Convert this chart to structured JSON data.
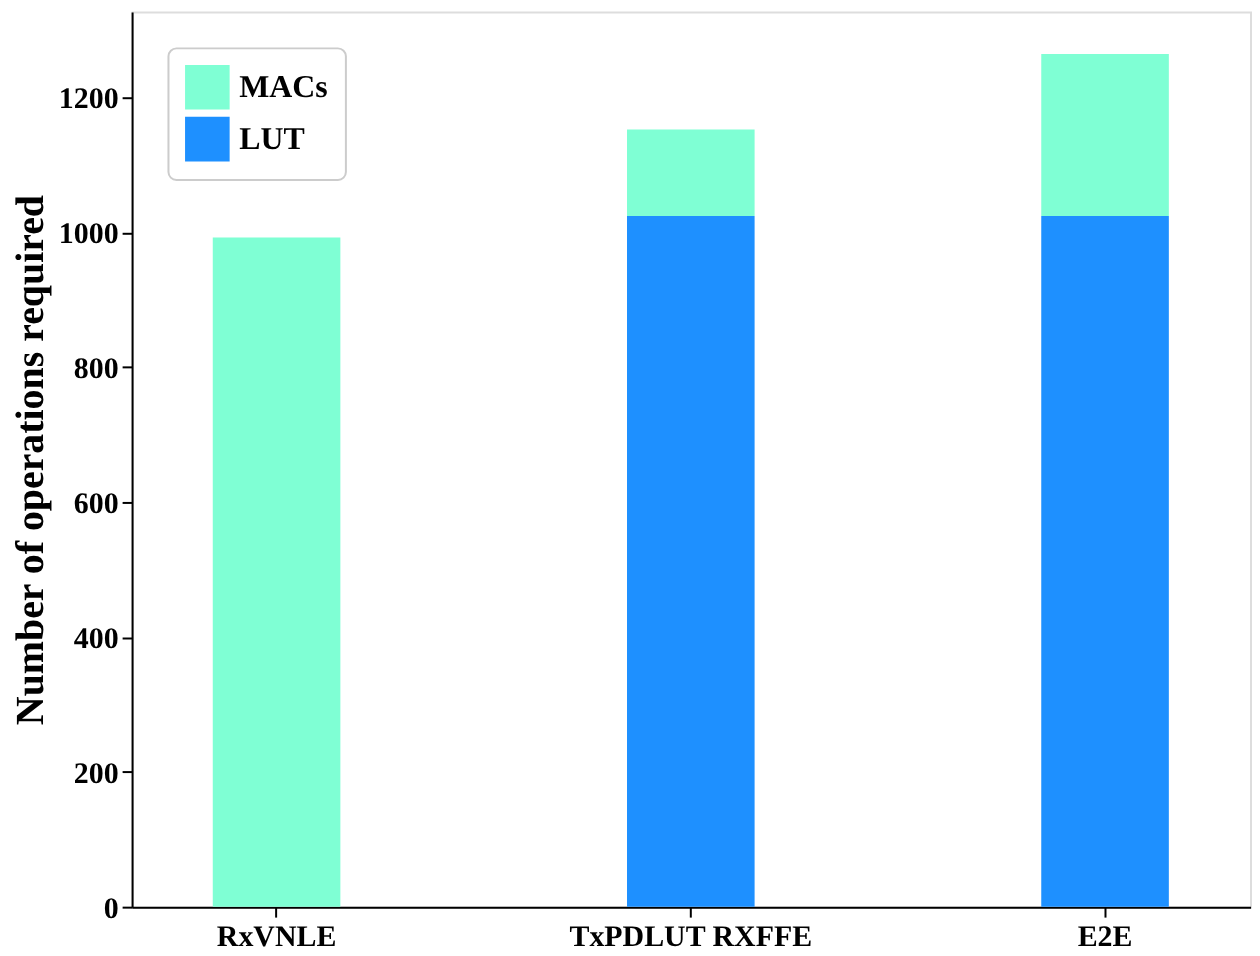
{
  "chart_data": {
    "type": "bar",
    "stacked": true,
    "ylabel": "Number of operations required",
    "categories": [
      "RxVNLE",
      "TxPDLUT  RXFFE",
      "E2E"
    ],
    "series": [
      {
        "name": "LUT",
        "color": "#1e90ff",
        "values": [
          0,
          1024,
          1024
        ]
      },
      {
        "name": "MACs",
        "color": "#7fffd4",
        "values": [
          992,
          128,
          240
        ]
      }
    ],
    "ylim": [
      0,
      1327
    ],
    "yticks": [
      0,
      200,
      400,
      600,
      800,
      1000,
      1200
    ],
    "grid": false,
    "legend": "top left"
  }
}
